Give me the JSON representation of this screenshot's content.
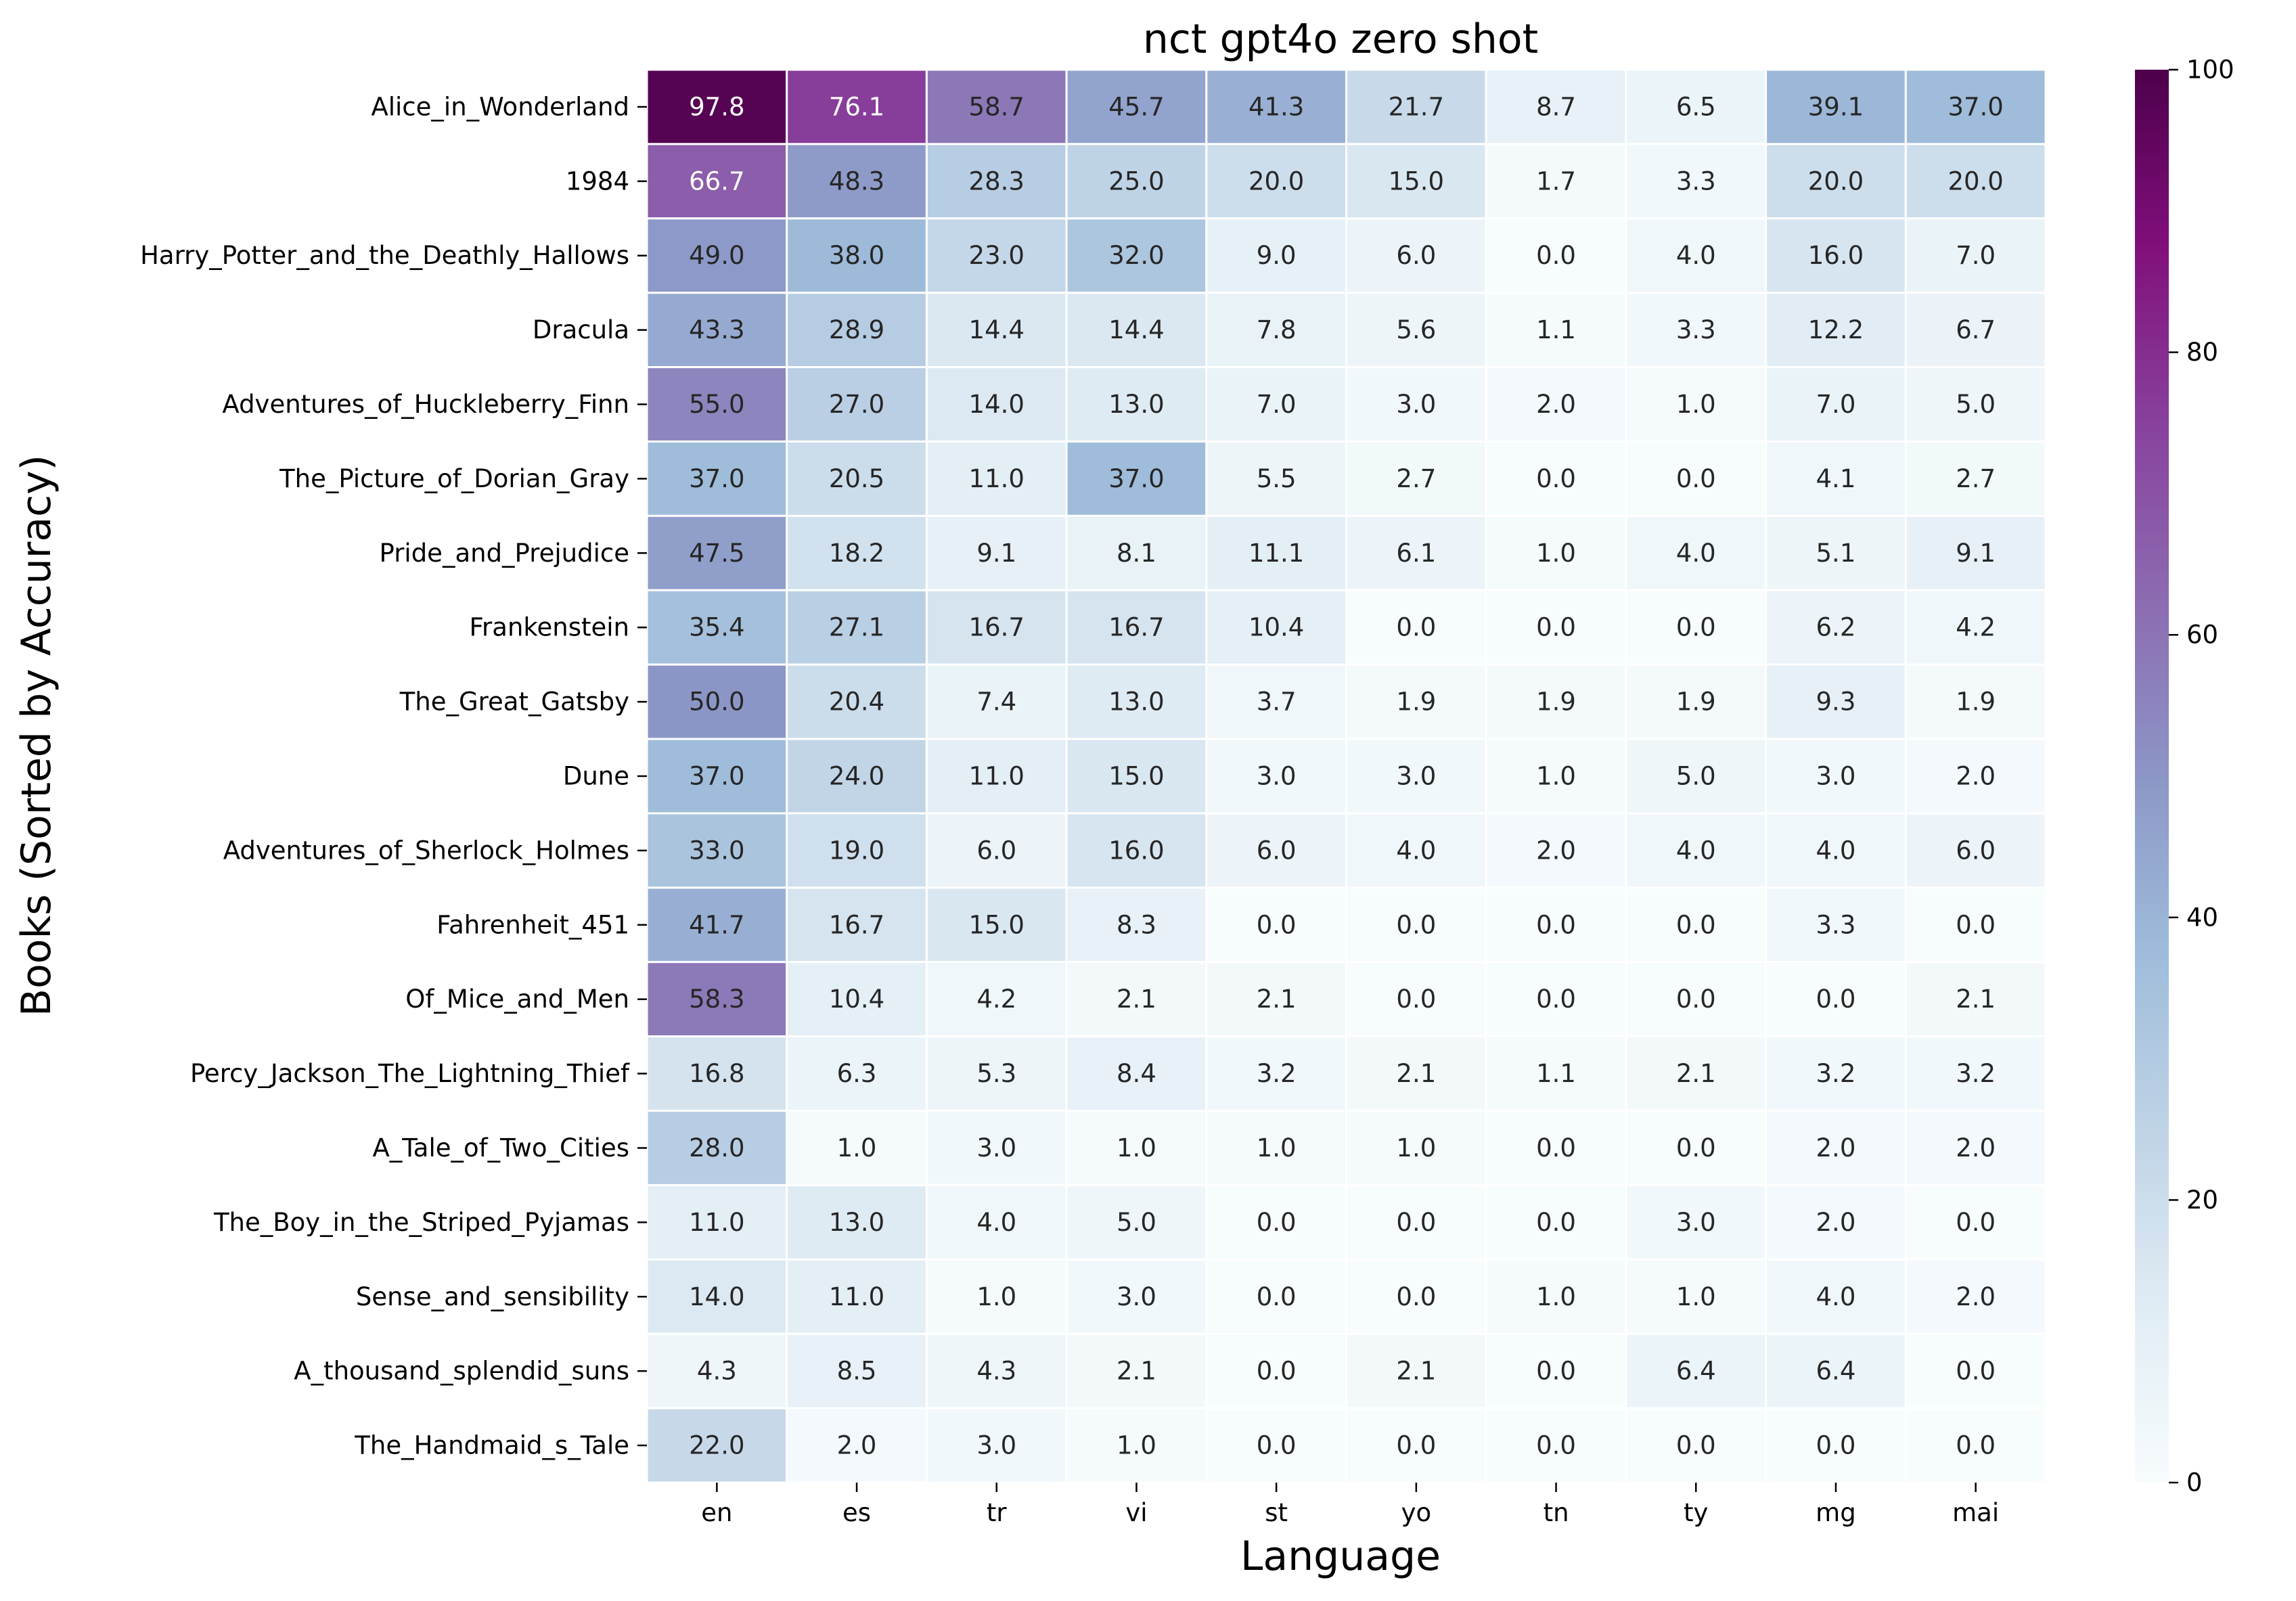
{
  "chart_data": {
    "type": "heatmap",
    "title": "nct gpt4o zero shot",
    "xlabel": "Language",
    "ylabel": "Books (Sorted by Accuracy)",
    "x_categories": [
      "en",
      "es",
      "tr",
      "vi",
      "st",
      "yo",
      "tn",
      "ty",
      "mg",
      "mai"
    ],
    "y_categories": [
      "Alice_in_Wonderland",
      "1984",
      "Harry_Potter_and_the_Deathly_Hallows",
      "Dracula",
      "Adventures_of_Huckleberry_Finn",
      "The_Picture_of_Dorian_Gray",
      "Pride_and_Prejudice",
      "Frankenstein",
      "The_Great_Gatsby",
      "Dune",
      "Adventures_of_Sherlock_Holmes",
      "Fahrenheit_451",
      "Of_Mice_and_Men",
      "Percy_Jackson_The_Lightning_Thief",
      "A_Tale_of_Two_Cities",
      "The_Boy_in_the_Striped_Pyjamas",
      "Sense_and_sensibility",
      "A_thousand_splendid_suns",
      "The_Handmaid_s_Tale"
    ],
    "values": [
      [
        97.8,
        76.1,
        58.7,
        45.7,
        41.3,
        21.7,
        8.7,
        6.5,
        39.1,
        37.0
      ],
      [
        66.7,
        48.3,
        28.3,
        25.0,
        20.0,
        15.0,
        1.7,
        3.3,
        20.0,
        20.0
      ],
      [
        49.0,
        38.0,
        23.0,
        32.0,
        9.0,
        6.0,
        0.0,
        4.0,
        16.0,
        7.0
      ],
      [
        43.3,
        28.9,
        14.4,
        14.4,
        7.8,
        5.6,
        1.1,
        3.3,
        12.2,
        6.7
      ],
      [
        55.0,
        27.0,
        14.0,
        13.0,
        7.0,
        3.0,
        2.0,
        1.0,
        7.0,
        5.0
      ],
      [
        37.0,
        20.5,
        11.0,
        37.0,
        5.5,
        2.7,
        0.0,
        0.0,
        4.1,
        2.7
      ],
      [
        47.5,
        18.2,
        9.1,
        8.1,
        11.1,
        6.1,
        1.0,
        4.0,
        5.1,
        9.1
      ],
      [
        35.4,
        27.1,
        16.7,
        16.7,
        10.4,
        0.0,
        0.0,
        0.0,
        6.2,
        4.2
      ],
      [
        50.0,
        20.4,
        7.4,
        13.0,
        3.7,
        1.9,
        1.9,
        1.9,
        9.3,
        1.9
      ],
      [
        37.0,
        24.0,
        11.0,
        15.0,
        3.0,
        3.0,
        1.0,
        5.0,
        3.0,
        2.0
      ],
      [
        33.0,
        19.0,
        6.0,
        16.0,
        6.0,
        4.0,
        2.0,
        4.0,
        4.0,
        6.0
      ],
      [
        41.7,
        16.7,
        15.0,
        8.3,
        0.0,
        0.0,
        0.0,
        0.0,
        3.3,
        0.0
      ],
      [
        58.3,
        10.4,
        4.2,
        2.1,
        2.1,
        0.0,
        0.0,
        0.0,
        0.0,
        2.1
      ],
      [
        16.8,
        6.3,
        5.3,
        8.4,
        3.2,
        2.1,
        1.1,
        2.1,
        3.2,
        3.2
      ],
      [
        28.0,
        1.0,
        3.0,
        1.0,
        1.0,
        1.0,
        0.0,
        0.0,
        2.0,
        2.0
      ],
      [
        11.0,
        13.0,
        4.0,
        5.0,
        0.0,
        0.0,
        0.0,
        3.0,
        2.0,
        0.0
      ],
      [
        14.0,
        11.0,
        1.0,
        3.0,
        0.0,
        0.0,
        1.0,
        1.0,
        4.0,
        2.0
      ],
      [
        4.3,
        8.5,
        4.3,
        2.1,
        0.0,
        2.1,
        0.0,
        6.4,
        6.4,
        0.0
      ],
      [
        22.0,
        2.0,
        3.0,
        1.0,
        0.0,
        0.0,
        0.0,
        0.0,
        0.0,
        0.0
      ]
    ],
    "value_format": "0.0",
    "colormap": "BuPu",
    "colormap_stops": [
      "#f7fcfd",
      "#e0ecf4",
      "#bfd3e6",
      "#9ebcda",
      "#8c96c6",
      "#8c6bb1",
      "#88419d",
      "#810f7c",
      "#4d004b"
    ],
    "cell_border_color": "#ffffff",
    "colorbar": {
      "vmin": 0,
      "vmax": 100,
      "ticks": [
        0,
        20,
        40,
        60,
        80,
        100
      ]
    }
  }
}
